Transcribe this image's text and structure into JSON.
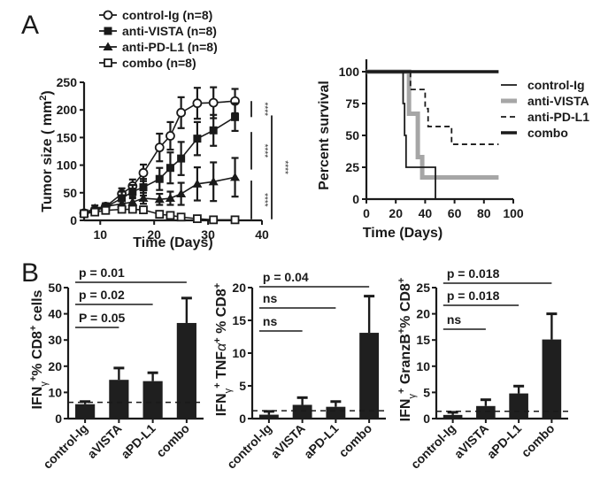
{
  "panels": {
    "a": "A",
    "b": "B"
  },
  "chart_data": [
    {
      "id": "tumor-growth",
      "type": "line",
      "title": "",
      "xlabel": "Time  (Days)",
      "ylabel": "Tumor size ( mm",
      "ylabel_sup": "2",
      "ylabel_close": ")",
      "xlim": [
        7,
        40
      ],
      "ylim": [
        0,
        250
      ],
      "xticks": [
        10,
        20,
        30,
        40
      ],
      "yticks": [
        0,
        50,
        100,
        150,
        200,
        250
      ],
      "legend_position": "top",
      "series": [
        {
          "name": "control-Ig  (n=8)",
          "marker": "open-circle",
          "x": [
            7,
            9,
            11,
            14,
            16,
            18,
            21,
            23,
            25,
            28,
            31,
            35
          ],
          "y": [
            13,
            18,
            25,
            48,
            62,
            86,
            132,
            153,
            195,
            212,
            213,
            216
          ],
          "err": [
            5,
            5,
            6,
            10,
            12,
            15,
            25,
            25,
            28,
            28,
            28,
            22
          ]
        },
        {
          "name": "anti-VISTA (n=8)",
          "marker": "filled-square",
          "x": [
            7,
            9,
            11,
            14,
            16,
            18,
            21,
            23,
            25,
            28,
            31,
            35
          ],
          "y": [
            13,
            17,
            24,
            40,
            52,
            60,
            75,
            95,
            112,
            148,
            163,
            187
          ],
          "err": [
            5,
            5,
            6,
            12,
            12,
            15,
            20,
            28,
            30,
            30,
            28,
            25
          ]
        },
        {
          "name": "anti-PD-L1 (n=8)",
          "marker": "filled-triangle",
          "x": [
            7,
            9,
            11,
            14,
            16,
            18,
            21,
            23,
            25,
            28,
            31,
            35
          ],
          "y": [
            13,
            22,
            25,
            30,
            33,
            40,
            38,
            40,
            48,
            66,
            70,
            78
          ],
          "err": [
            5,
            5,
            6,
            8,
            10,
            10,
            10,
            12,
            20,
            30,
            35,
            35
          ]
        },
        {
          "name": "combo (n=8)",
          "marker": "open-square",
          "x": [
            7,
            9,
            11,
            14,
            16,
            18,
            21,
            23,
            25,
            28,
            31,
            35
          ],
          "y": [
            12,
            15,
            18,
            20,
            20,
            19,
            11,
            9,
            6,
            3,
            1,
            1
          ],
          "err": [
            3,
            3,
            3,
            3,
            3,
            3,
            3,
            3,
            3,
            3,
            2,
            2
          ]
        }
      ],
      "significance": [
        {
          "label": "****",
          "from": 216,
          "to": 187
        },
        {
          "label": "****",
          "from": 160,
          "to": 92
        },
        {
          "label": "****",
          "from": 72,
          "to": 2
        },
        {
          "label": "****",
          "from": 190,
          "to": 2
        }
      ]
    },
    {
      "id": "survival",
      "type": "line",
      "title": "",
      "xlabel": "Time  (Days)",
      "ylabel": "Percent survival",
      "xlim": [
        0,
        100
      ],
      "ylim": [
        0,
        100
      ],
      "xticks": [
        0,
        20,
        40,
        60,
        80,
        100
      ],
      "yticks": [
        0,
        25,
        50,
        75,
        100
      ],
      "legend_position": "right",
      "series": [
        {
          "name": "control-Ig",
          "style": "thin-black",
          "steps": [
            [
              0,
              100
            ],
            [
              25,
              100
            ],
            [
              25,
              75
            ],
            [
              26,
              75
            ],
            [
              26,
              50
            ],
            [
              27,
              50
            ],
            [
              27,
              25
            ],
            [
              47,
              25
            ],
            [
              47,
              0
            ]
          ]
        },
        {
          "name": "anti-VISTA",
          "style": "thick-gray",
          "steps": [
            [
              0,
              100
            ],
            [
              29,
              100
            ],
            [
              29,
              67
            ],
            [
              35,
              67
            ],
            [
              35,
              33
            ],
            [
              38,
              33
            ],
            [
              38,
              17
            ],
            [
              90,
              17
            ]
          ]
        },
        {
          "name": "anti-PD-L1",
          "style": "dashed-black",
          "steps": [
            [
              0,
              100
            ],
            [
              30,
              100
            ],
            [
              30,
              86
            ],
            [
              40,
              86
            ],
            [
              40,
              71
            ],
            [
              42,
              71
            ],
            [
              42,
              57
            ],
            [
              58,
              57
            ],
            [
              58,
              43
            ],
            [
              90,
              43
            ]
          ]
        },
        {
          "name": "combo",
          "style": "thick-black",
          "steps": [
            [
              0,
              100
            ],
            [
              90,
              100
            ]
          ]
        }
      ]
    },
    {
      "id": "ifng-cd8",
      "type": "bar",
      "ylabel_parts": [
        "IFN",
        "γ",
        "+",
        "% CD8",
        "+",
        " cells"
      ],
      "categories": [
        "control-Ig",
        "aVISTA",
        "aPD-L1",
        "combo"
      ],
      "values": [
        5.5,
        14.8,
        14.3,
        36.5
      ],
      "err": [
        1.0,
        4.5,
        3.2,
        9.5
      ],
      "baseline": 6.2,
      "ylim": [
        0,
        50
      ],
      "yticks": [
        0,
        10,
        20,
        30,
        40,
        50
      ],
      "comparisons": [
        {
          "label": "p = 0.01",
          "from": 0,
          "to": 3
        },
        {
          "label": "p = 0.02",
          "from": 0,
          "to": 2
        },
        {
          "label": "P = 0.05",
          "from": 0,
          "to": 1
        }
      ]
    },
    {
      "id": "ifng-tnfa-cd8",
      "type": "bar",
      "ylabel_parts": [
        "IFN",
        "γ",
        "+",
        " TNF",
        "α",
        "+",
        " % CD8",
        "+"
      ],
      "categories": [
        "control-Ig",
        "aVISTA",
        "aPD-L1",
        "combo"
      ],
      "values": [
        0.6,
        2.1,
        1.8,
        13.1
      ],
      "err": [
        0.5,
        1.1,
        0.8,
        5.6
      ],
      "baseline": 1.2,
      "ylim": [
        0,
        20
      ],
      "yticks": [
        0,
        5,
        10,
        15,
        20
      ],
      "comparisons": [
        {
          "label": "p = 0.04",
          "from": 0,
          "to": 3
        },
        {
          "label": "ns",
          "from": 0,
          "to": 2
        },
        {
          "label": "ns",
          "from": 0,
          "to": 1
        }
      ]
    },
    {
      "id": "ifng-granzb-cd8",
      "type": "bar",
      "ylabel_parts": [
        "IFN",
        "γ",
        "+",
        " GranzB",
        "+",
        "% CD8",
        "+"
      ],
      "categories": [
        "control-Ig",
        "aVISTA",
        "aPD-L1",
        "combo"
      ],
      "values": [
        0.7,
        2.4,
        4.8,
        15.1
      ],
      "err": [
        0.5,
        1.2,
        1.4,
        4.9
      ],
      "baseline": 1.4,
      "ylim": [
        0,
        25
      ],
      "yticks": [
        0,
        5,
        10,
        15,
        20,
        25
      ],
      "comparisons": [
        {
          "label": "p = 0.018",
          "from": 0,
          "to": 3
        },
        {
          "label": "p = 0.018",
          "from": 0,
          "to": 2
        },
        {
          "label": "ns",
          "from": 0,
          "to": 1
        }
      ]
    }
  ]
}
